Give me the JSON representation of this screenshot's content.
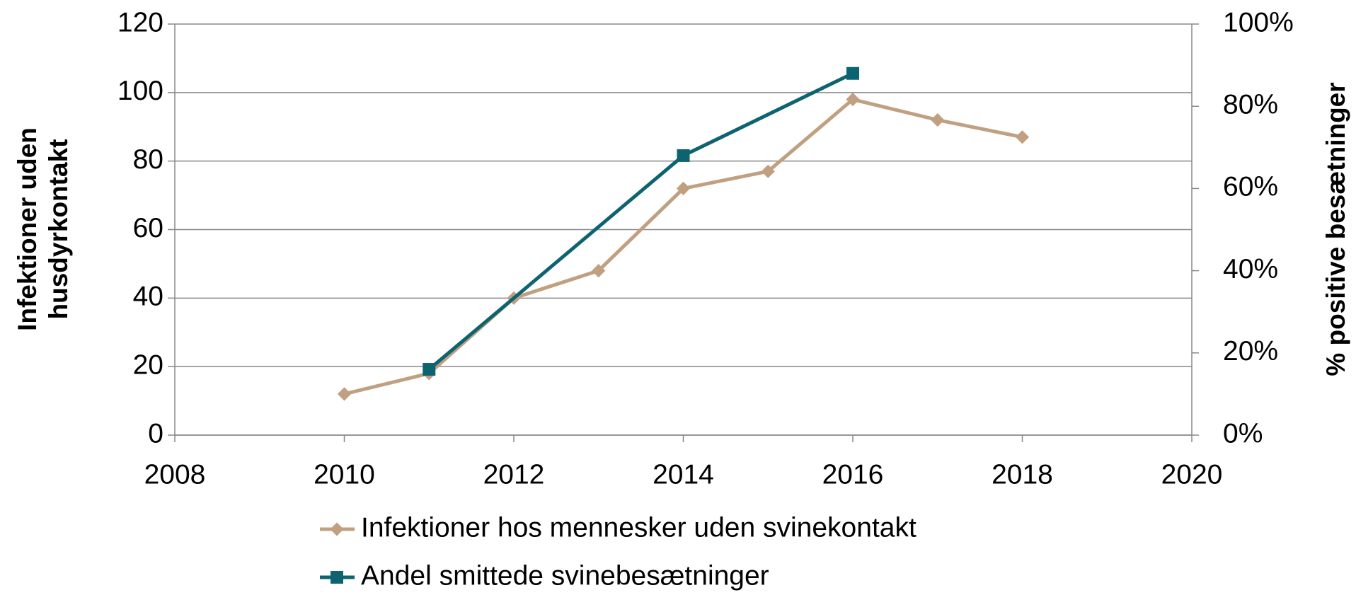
{
  "chart_data": {
    "type": "line",
    "ylabel": [
      "Infektioner uden",
      "husdyrkontakt"
    ],
    "y2label": "% positive besætninger",
    "xlim": [
      2008,
      2020
    ],
    "xticks": [
      2008,
      2010,
      2012,
      2014,
      2016,
      2018,
      2020
    ],
    "ylim": [
      0,
      120
    ],
    "yticks": [
      0,
      20,
      40,
      60,
      80,
      100,
      120
    ],
    "y2lim": [
      0,
      100
    ],
    "y2ticks": [
      {
        "value": 0,
        "label": "0%"
      },
      {
        "value": 20,
        "label": "20%"
      },
      {
        "value": 40,
        "label": "40%"
      },
      {
        "value": 60,
        "label": "60%"
      },
      {
        "value": 80,
        "label": "80%"
      },
      {
        "value": 100,
        "label": "100%"
      }
    ],
    "grid": true,
    "legend": "bottom",
    "series": [
      {
        "name": "Infektioner hos mennesker uden svinekontakt",
        "color": "#c0a080",
        "marker": "diamond",
        "x": [
          2010,
          2011,
          2012,
          2013,
          2014,
          2015,
          2016,
          2017,
          2018
        ],
        "values": [
          12,
          18,
          40,
          48,
          72,
          77,
          98,
          92,
          87
        ]
      },
      {
        "name": "Andel smittede svinebesætninger",
        "color": "#0d6470",
        "marker": "square",
        "axis": "y2",
        "x": [
          2011,
          2014,
          2016
        ],
        "values": [
          16,
          68,
          88
        ]
      }
    ]
  }
}
